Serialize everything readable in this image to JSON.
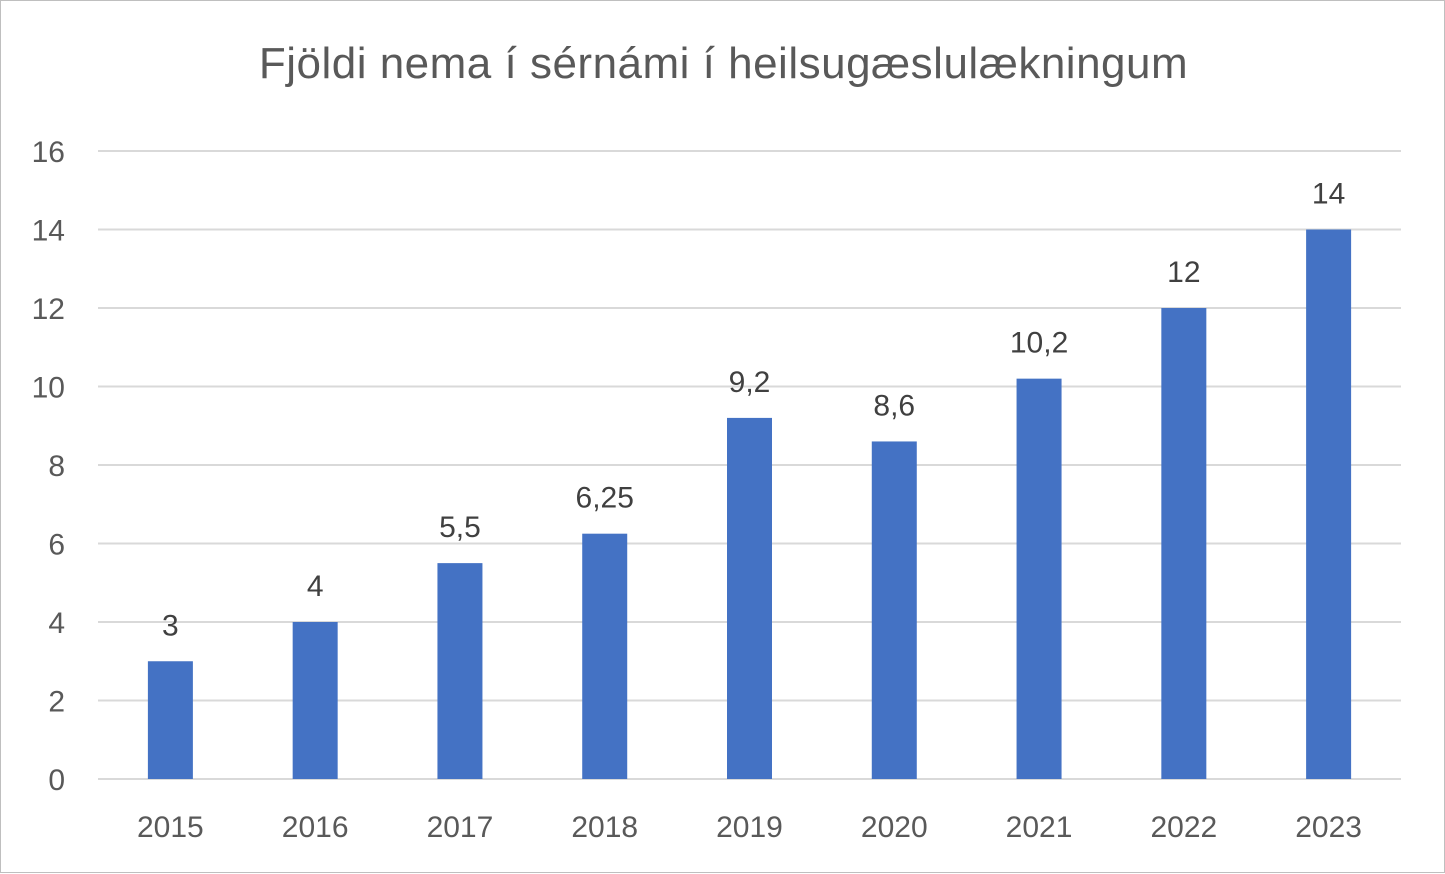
{
  "chart_data": {
    "type": "bar",
    "title": "Fjöldi nema í sérnámi í heilsugæslulækningum",
    "xlabel": "",
    "ylabel": "",
    "categories": [
      "2015",
      "2016",
      "2017",
      "2018",
      "2019",
      "2020",
      "2021",
      "2022",
      "2023"
    ],
    "values": [
      3,
      4,
      5.5,
      6.25,
      9.2,
      8.6,
      10.2,
      12,
      14
    ],
    "data_labels": [
      "3",
      "4",
      "5,5",
      "6,25",
      "9,2",
      "8,6",
      "10,2",
      "12",
      "14"
    ],
    "ylim": [
      0,
      16
    ],
    "yticks": [
      "0",
      "2",
      "4",
      "6",
      "8",
      "10",
      "12",
      "14",
      "16"
    ],
    "grid": true,
    "legend": "none",
    "bar_color": "#4472C4",
    "grid_color": "#d9d9d9",
    "text_color": "#595959"
  }
}
